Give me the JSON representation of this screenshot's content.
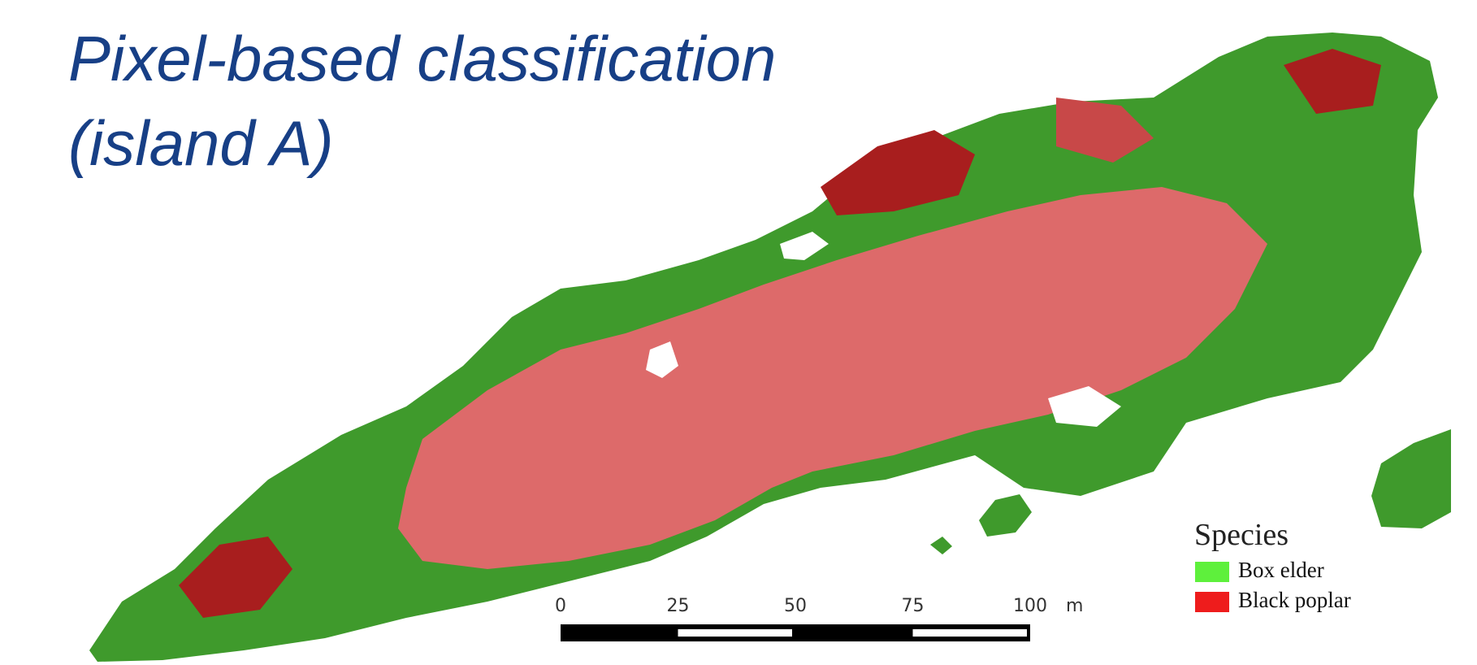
{
  "title": {
    "lines": [
      "Pixel-based classification",
      "(island A)"
    ]
  },
  "legend": {
    "title": "Species",
    "items": [
      {
        "label": "Box elder",
        "color": "#5ef03c"
      },
      {
        "label": "Black poplar",
        "color": "#ee1c1c"
      }
    ]
  },
  "scale_bar": {
    "ticks": [
      "0",
      "25",
      "50",
      "75",
      "100"
    ],
    "unit": "m"
  }
}
